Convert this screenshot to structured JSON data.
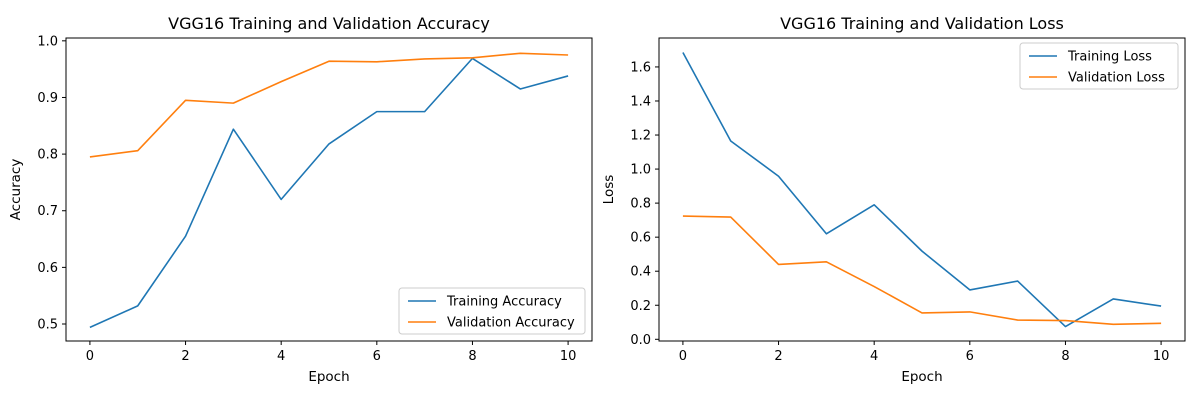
{
  "colors": {
    "training": "#1f77b4",
    "validation": "#ff7f0e"
  },
  "chart_data": [
    {
      "type": "line",
      "title": "VGG16 Training and Validation Accuracy",
      "xlabel": "Epoch",
      "ylabel": "Accuracy",
      "xlim": [
        -0.5,
        10.5
      ],
      "ylim": [
        0.47,
        1.005
      ],
      "xticks": [
        0,
        2,
        4,
        6,
        8,
        10
      ],
      "yticks": [
        0.5,
        0.6,
        0.7,
        0.8,
        0.9,
        1.0
      ],
      "ytick_labels": [
        "0.5",
        "0.6",
        "0.7",
        "0.8",
        "0.9",
        "1.0"
      ],
      "grid": false,
      "legend_position": "lower-right",
      "x": [
        0,
        1,
        2,
        3,
        4,
        5,
        6,
        7,
        8,
        9,
        10
      ],
      "series": [
        {
          "name": "Training Accuracy",
          "color": "#1f77b4",
          "values": [
            0.494,
            0.532,
            0.655,
            0.844,
            0.72,
            0.818,
            0.875,
            0.875,
            0.969,
            0.915,
            0.938
          ]
        },
        {
          "name": "Validation Accuracy",
          "color": "#ff7f0e",
          "values": [
            0.795,
            0.806,
            0.895,
            0.89,
            0.928,
            0.964,
            0.963,
            0.968,
            0.97,
            0.978,
            0.975
          ]
        }
      ]
    },
    {
      "type": "line",
      "title": "VGG16 Training and Validation Loss",
      "xlabel": "Epoch",
      "ylabel": "Loss",
      "xlim": [
        -0.5,
        10.5
      ],
      "ylim": [
        -0.01,
        1.77
      ],
      "xticks": [
        0,
        2,
        4,
        6,
        8,
        10
      ],
      "yticks": [
        0.0,
        0.2,
        0.4,
        0.6,
        0.8,
        1.0,
        1.2,
        1.4,
        1.6
      ],
      "ytick_labels": [
        "0.0",
        "0.2",
        "0.4",
        "0.6",
        "0.8",
        "1.0",
        "1.2",
        "1.4",
        "1.6"
      ],
      "grid": false,
      "legend_position": "upper-right",
      "x": [
        0,
        1,
        2,
        3,
        4,
        5,
        6,
        7,
        8,
        9,
        10
      ],
      "series": [
        {
          "name": "Training Loss",
          "color": "#1f77b4",
          "values": [
            1.685,
            1.165,
            0.958,
            0.62,
            0.79,
            0.518,
            0.29,
            0.342,
            0.075,
            0.237,
            0.195
          ]
        },
        {
          "name": "Validation Loss",
          "color": "#ff7f0e",
          "values": [
            0.724,
            0.718,
            0.44,
            0.455,
            0.31,
            0.155,
            0.161,
            0.113,
            0.11,
            0.088,
            0.094
          ]
        }
      ]
    }
  ]
}
